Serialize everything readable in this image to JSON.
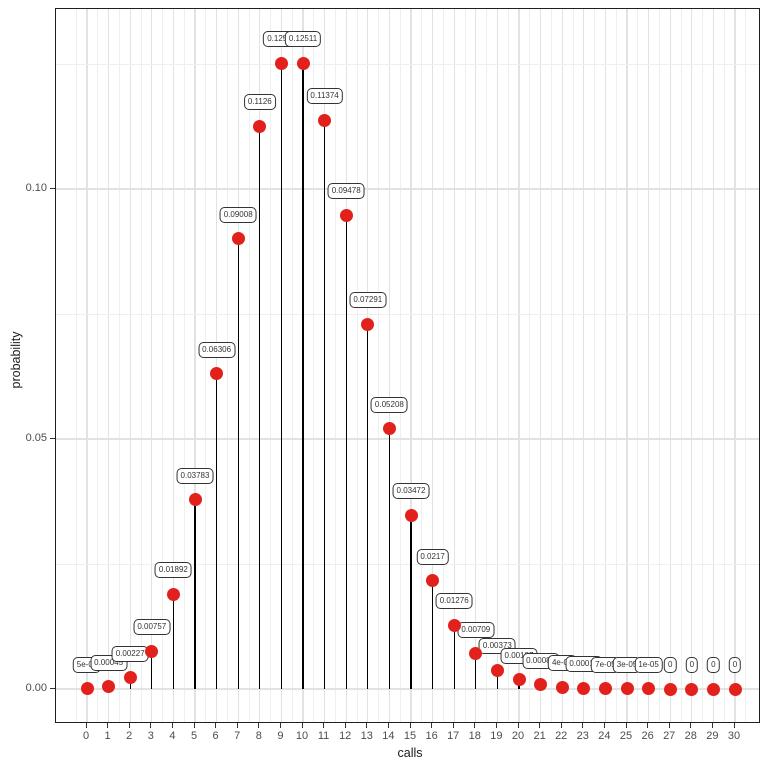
{
  "chart_data": {
    "type": "scatter",
    "variant": "stem-lollipop",
    "title": "",
    "xlabel": "calls",
    "ylabel": "probability",
    "x": [
      0,
      1,
      2,
      3,
      4,
      5,
      6,
      7,
      8,
      9,
      10,
      11,
      12,
      13,
      14,
      15,
      16,
      17,
      18,
      19,
      20,
      21,
      22,
      23,
      24,
      25,
      26,
      27,
      28,
      29,
      30
    ],
    "values": [
      5e-05,
      0.00045,
      0.00227,
      0.00757,
      0.01892,
      0.03783,
      0.06306,
      0.09008,
      0.1126,
      0.12511,
      0.12511,
      0.11374,
      0.09478,
      0.07291,
      0.05208,
      0.03472,
      0.0217,
      0.01276,
      0.00709,
      0.00373,
      0.00187,
      0.00089,
      0.0004,
      0.00018,
      7e-05,
      3e-05,
      1e-05,
      0,
      0,
      0,
      0
    ],
    "point_labels": [
      "5e-05",
      "0.00045",
      "0.00227",
      "0.00757",
      "0.01892",
      "0.03783",
      "0.06306",
      "0.09008",
      "0.1126",
      "0.12511",
      "0.12511",
      "0.11374",
      "0.09478",
      "0.07291",
      "0.05208",
      "0.03472",
      "0.0217",
      "0.01276",
      "0.00709",
      "0.00373",
      "0.00187",
      "0.00089",
      "4e-04",
      "0.00018",
      "7e-05",
      "3e-05",
      "1e-05",
      "0",
      "0",
      "0",
      "0"
    ],
    "xtick_labels": [
      "0",
      "1",
      "2",
      "3",
      "4",
      "5",
      "6",
      "7",
      "8",
      "9",
      "10",
      "11",
      "12",
      "13",
      "14",
      "15",
      "16",
      "17",
      "18",
      "19",
      "20",
      "21",
      "22",
      "23",
      "24",
      "25",
      "26",
      "27",
      "28",
      "29",
      "30"
    ],
    "yticks": [
      {
        "label": "0.00",
        "value": 0
      },
      {
        "label": "0.05",
        "value": 0.05
      },
      {
        "label": "0.10",
        "value": 0.1
      }
    ],
    "y_minor": [
      0.025,
      0.075,
      0.125
    ],
    "ylim": [
      0,
      0.136
    ],
    "grid": "major+minor",
    "legend": "none",
    "point_color": "#e2201c",
    "stem_color": "#000000",
    "label_box": {
      "fill": "#ffffff",
      "border": "#333333",
      "text_color": "#333333"
    }
  }
}
